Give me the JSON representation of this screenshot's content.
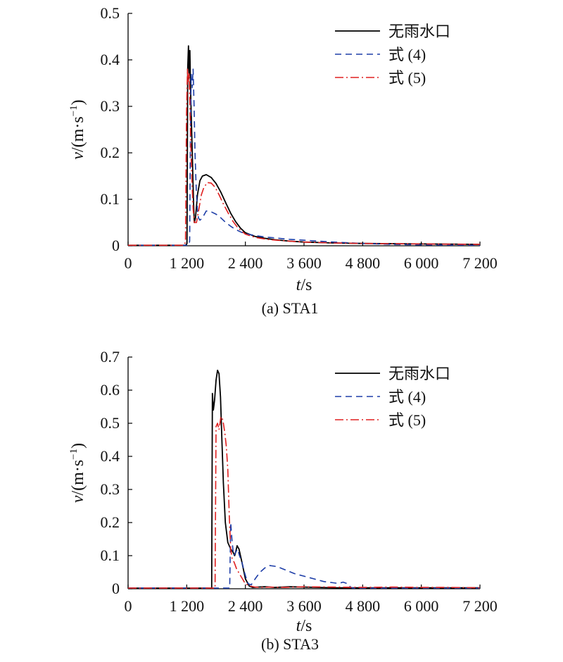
{
  "chart_data": [
    {
      "type": "line",
      "caption": "(a) STA1",
      "xlabel_var": "t",
      "xlabel_unit": "/s",
      "ylabel_var": "v",
      "ylabel_unit": "/(m·s",
      "ylabel_exp": "−1",
      "ylabel_close": ")",
      "xlim": [
        0,
        7200
      ],
      "ylim": [
        0,
        0.5
      ],
      "xticks": [
        0,
        1200,
        2400,
        3600,
        4800,
        6000,
        7200
      ],
      "xtick_labels": [
        "0",
        "1 200",
        "2 400",
        "3 600",
        "4 800",
        "6 000",
        "7 200"
      ],
      "yticks": [
        0,
        0.1,
        0.2,
        0.3,
        0.4,
        0.5
      ],
      "ytick_labels": [
        "0",
        "0.1",
        "0.2",
        "0.3",
        "0.4",
        "0.5"
      ],
      "legend_position": "top-right",
      "series": [
        {
          "name": "无雨水口",
          "color": "#000000",
          "dash": "solid",
          "x": [
            0,
            1180,
            1205,
            1220,
            1235,
            1250,
            1265,
            1280,
            1300,
            1320,
            1340,
            1355,
            1380,
            1420,
            1470,
            1520,
            1600,
            1700,
            1800,
            1900,
            2000,
            2100,
            2200,
            2300,
            2400,
            2600,
            2800,
            3000,
            3300,
            3600,
            4200,
            4800,
            6000,
            7200
          ],
          "y": [
            0.001,
            0.001,
            0.005,
            0.38,
            0.43,
            0.37,
            0.42,
            0.33,
            0.25,
            0.17,
            0.09,
            0.05,
            0.06,
            0.11,
            0.14,
            0.15,
            0.153,
            0.147,
            0.134,
            0.115,
            0.092,
            0.07,
            0.052,
            0.038,
            0.028,
            0.02,
            0.016,
            0.013,
            0.01,
            0.008,
            0.006,
            0.005,
            0.004,
            0.003
          ]
        },
        {
          "name": "式 (4)",
          "color": "#1f3fa8",
          "dash": "9 6",
          "x": [
            0,
            1240,
            1260,
            1275,
            1290,
            1310,
            1330,
            1350,
            1370,
            1395,
            1420,
            1440,
            1470,
            1520,
            1600,
            1700,
            1800,
            1900,
            2000,
            2100,
            2200,
            2300,
            2400,
            2600,
            2800,
            3000,
            3300,
            3600,
            4200,
            4800,
            5400,
            6000,
            7200
          ],
          "y": [
            0.001,
            0.001,
            0.01,
            0.22,
            0.37,
            0.34,
            0.38,
            0.3,
            0.2,
            0.12,
            0.075,
            0.06,
            0.055,
            0.06,
            0.075,
            0.073,
            0.068,
            0.06,
            0.05,
            0.042,
            0.035,
            0.03,
            0.026,
            0.022,
            0.019,
            0.017,
            0.014,
            0.012,
            0.008,
            0.005,
            0.003,
            0.002,
            0.001
          ]
        },
        {
          "name": "式 (5)",
          "color": "#e02020",
          "dash": "12 4 2 4",
          "x": [
            0,
            1150,
            1175,
            1195,
            1215,
            1230,
            1250,
            1270,
            1290,
            1310,
            1330,
            1355,
            1400,
            1450,
            1500,
            1550,
            1620,
            1700,
            1780,
            1860,
            1950,
            2050,
            2150,
            2250,
            2400,
            2600,
            2900,
            3300,
            3600,
            4200,
            4800,
            6000,
            7200
          ],
          "y": [
            0.001,
            0.001,
            0.01,
            0.28,
            0.38,
            0.35,
            0.37,
            0.28,
            0.19,
            0.13,
            0.08,
            0.05,
            0.05,
            0.08,
            0.11,
            0.125,
            0.136,
            0.135,
            0.126,
            0.11,
            0.09,
            0.07,
            0.052,
            0.038,
            0.025,
            0.018,
            0.013,
            0.01,
            0.008,
            0.006,
            0.005,
            0.004,
            0.003
          ]
        }
      ]
    },
    {
      "type": "line",
      "caption": "(b) STA3",
      "xlabel_var": "t",
      "xlabel_unit": "/s",
      "ylabel_var": "v",
      "ylabel_unit": "/(m·s",
      "ylabel_exp": "−1",
      "ylabel_close": ")",
      "xlim": [
        0,
        7200
      ],
      "ylim": [
        0,
        0.7
      ],
      "xticks": [
        0,
        1200,
        2400,
        3600,
        4800,
        6000,
        7200
      ],
      "xtick_labels": [
        "0",
        "1 200",
        "2 400",
        "3 600",
        "4 800",
        "6 000",
        "7 200"
      ],
      "yticks": [
        0,
        0.1,
        0.2,
        0.3,
        0.4,
        0.5,
        0.6,
        0.7
      ],
      "ytick_labels": [
        "0",
        "0.1",
        "0.2",
        "0.3",
        "0.4",
        "0.5",
        "0.6",
        "0.7"
      ],
      "legend_position": "top-right",
      "series": [
        {
          "name": "无雨水口",
          "color": "#000000",
          "dash": "solid",
          "x": [
            0,
            1710,
            1725,
            1745,
            1770,
            1800,
            1830,
            1860,
            1890,
            1920,
            1950,
            1990,
            2040,
            2100,
            2150,
            2180,
            2200,
            2230,
            2270,
            2330,
            2400,
            2480,
            2550,
            2650,
            2800,
            3000,
            3300,
            3600,
            4200,
            4800,
            6000,
            7200
          ],
          "y": [
            0.002,
            0.002,
            0.59,
            0.54,
            0.57,
            0.63,
            0.66,
            0.65,
            0.58,
            0.45,
            0.32,
            0.2,
            0.14,
            0.12,
            0.11,
            0.1,
            0.11,
            0.13,
            0.12,
            0.08,
            0.03,
            0.008,
            0.004,
            0.005,
            0.006,
            0.004,
            0.006,
            0.005,
            0.003,
            0.003,
            0.003,
            0.003
          ]
        },
        {
          "name": "式 (4)",
          "color": "#1f3fa8",
          "dash": "9 6",
          "x": [
            0,
            2080,
            2100,
            2130,
            2160,
            2200,
            2240,
            2280,
            2330,
            2380,
            2420,
            2460,
            2520,
            2600,
            2700,
            2800,
            2900,
            3000,
            3100,
            3200,
            3300,
            3400,
            3500,
            3600,
            3700,
            3800,
            3900,
            4000,
            4100,
            4200,
            4300,
            4400,
            4500,
            4550,
            4600,
            4800,
            6000,
            7200
          ],
          "y": [
            0.002,
            0.002,
            0.2,
            0.14,
            0.1,
            0.11,
            0.12,
            0.1,
            0.08,
            0.05,
            0.03,
            0.015,
            0.012,
            0.03,
            0.05,
            0.063,
            0.07,
            0.068,
            0.064,
            0.058,
            0.052,
            0.046,
            0.042,
            0.038,
            0.034,
            0.03,
            0.026,
            0.022,
            0.02,
            0.018,
            0.016,
            0.02,
            0.015,
            0.005,
            0.002,
            0.002,
            0.002,
            0.002
          ]
        },
        {
          "name": "式 (5)",
          "color": "#e02020",
          "dash": "12 4 2 4",
          "x": [
            0,
            1780,
            1800,
            1830,
            1860,
            1900,
            1940,
            1980,
            2010,
            2040,
            2070,
            2100,
            2130,
            2170,
            2220,
            2280,
            2340,
            2400,
            2500,
            2600,
            2700,
            2900,
            3200,
            3600,
            4200,
            4800,
            5400,
            6000,
            6600,
            7200
          ],
          "y": [
            0.002,
            0.002,
            0.49,
            0.5,
            0.48,
            0.52,
            0.51,
            0.47,
            0.43,
            0.36,
            0.22,
            0.12,
            0.09,
            0.08,
            0.06,
            0.045,
            0.03,
            0.015,
            0.008,
            0.005,
            0.004,
            0.005,
            0.004,
            0.006,
            0.005,
            0.004,
            0.005,
            0.004,
            0.004,
            0.003
          ]
        }
      ]
    }
  ]
}
